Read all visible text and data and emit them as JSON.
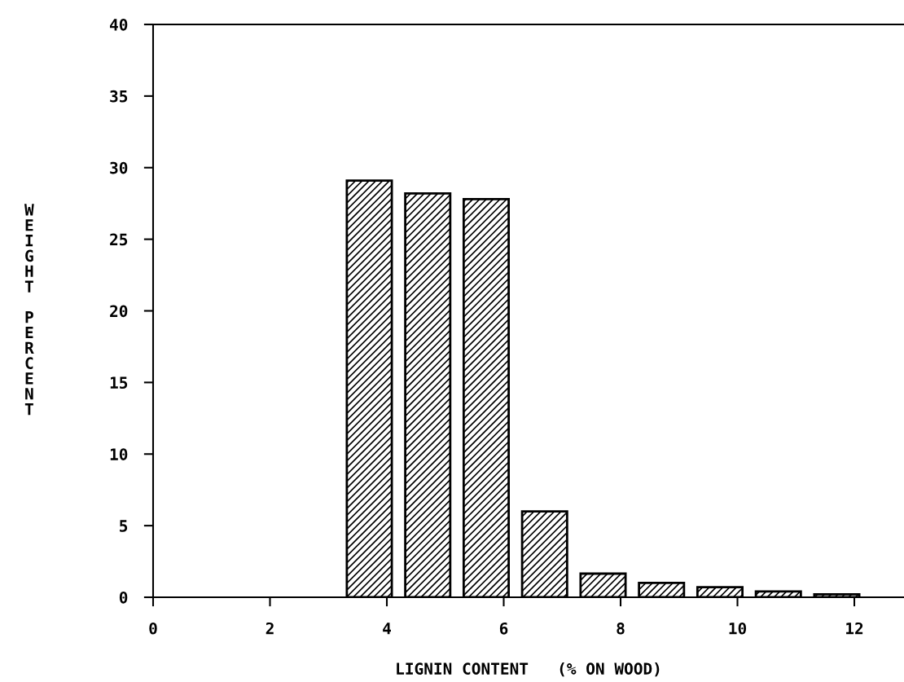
{
  "chart_data": {
    "type": "bar",
    "xlabel": "LIGNIN CONTENT   (% ON WOOD)",
    "ylabel": "WEIGHT PERCENT",
    "x": [
      3.7,
      4.7,
      5.7,
      6.7,
      7.7,
      8.7,
      9.7,
      10.7,
      11.7
    ],
    "values": [
      29.1,
      28.2,
      27.8,
      6.0,
      1.65,
      1.0,
      0.7,
      0.4,
      0.2
    ],
    "color": "#000000",
    "xlim": [
      0,
      12.85
    ],
    "xticks": [
      0,
      2,
      4,
      6,
      8,
      10,
      12
    ],
    "ylim": [
      0,
      40
    ],
    "yticks": [
      0,
      5,
      10,
      15,
      20,
      25,
      30,
      35,
      40
    ],
    "grid": false
  }
}
